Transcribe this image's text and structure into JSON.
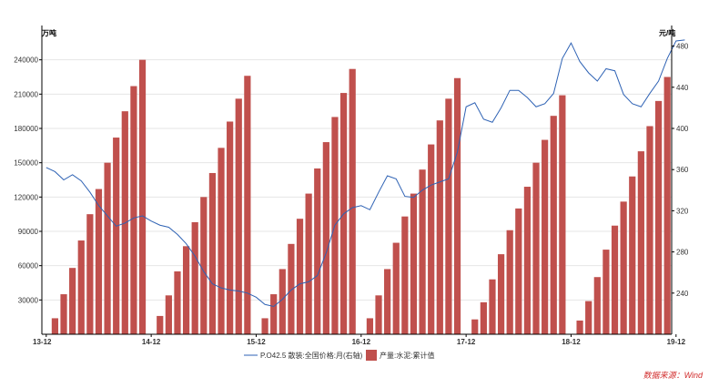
{
  "chart_data": {
    "type": "bar+line",
    "left_axis": {
      "unit": "万吨",
      "ylim": [
        0,
        270000
      ],
      "ticks": [
        "30000",
        "60000",
        "90000",
        "120000",
        "150000",
        "180000",
        "210000",
        "240000"
      ]
    },
    "right_axis": {
      "unit": "元/吨",
      "ylim": [
        200,
        500
      ],
      "ticks": [
        "240",
        "280",
        "320",
        "360",
        "400",
        "440",
        "480"
      ]
    },
    "x_tick_labels": [
      "13-12",
      "14-12",
      "15-12",
      "16-12",
      "17-12",
      "18-12",
      "19-12"
    ],
    "bar_series": {
      "name": "产量:水泥:累计值",
      "color": "#c0504d",
      "values": [
        null,
        14000,
        35000,
        58000,
        82000,
        105000,
        127000,
        150000,
        172000,
        195000,
        217000,
        240000,
        null,
        16000,
        34000,
        55000,
        77000,
        98000,
        120000,
        141000,
        163000,
        186000,
        206000,
        226000,
        null,
        14000,
        35000,
        57000,
        79000,
        101000,
        123000,
        145000,
        168000,
        190000,
        211000,
        232000,
        null,
        14000,
        34000,
        57000,
        80000,
        103000,
        123000,
        144000,
        166000,
        187000,
        206000,
        224000,
        null,
        13000,
        28000,
        48000,
        70000,
        91000,
        110000,
        129000,
        150000,
        170000,
        191000,
        209000,
        null,
        12000,
        29000,
        50000,
        74000,
        95000,
        116000,
        138000,
        160000,
        182000,
        204000,
        225000
      ]
    },
    "line_series": {
      "name": "P.O42.5 散装:全国价格:月(右轴)",
      "color": "#2e62b4",
      "values": [
        362,
        358,
        350,
        355,
        349,
        338,
        325,
        315,
        305,
        308,
        313,
        315,
        310,
        306,
        304,
        297,
        288,
        276,
        261,
        249,
        245,
        243,
        242,
        240,
        236,
        229,
        227,
        234,
        243,
        249,
        251,
        257,
        279,
        306,
        317,
        323,
        325,
        321,
        338,
        354,
        351,
        334,
        333,
        340,
        345,
        348,
        351,
        377,
        421,
        425,
        409,
        406,
        420,
        437,
        437,
        430,
        421,
        424,
        434,
        468,
        483,
        465,
        454,
        446,
        458,
        456,
        433,
        424,
        421,
        434,
        446,
        468,
        485,
        486
      ]
    },
    "source": "数据来源：Wind"
  }
}
